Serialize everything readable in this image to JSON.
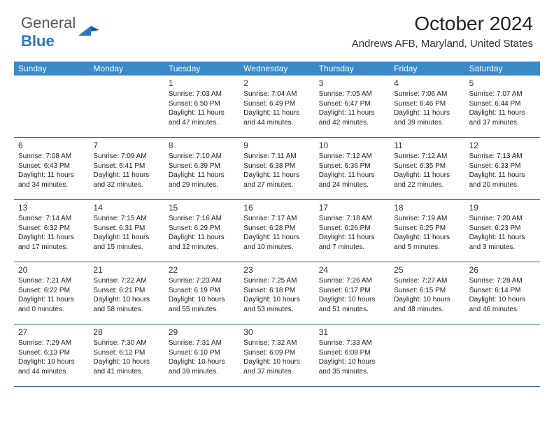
{
  "logo": {
    "text1": "General",
    "text2": "Blue"
  },
  "header": {
    "month": "October 2024",
    "location": "Andrews AFB, Maryland, United States"
  },
  "colors": {
    "header_bg": "#3a89c9",
    "header_text": "#ffffff",
    "border": "#2a6a9a",
    "text": "#222222",
    "logo_gray": "#555555",
    "logo_blue": "#2a7ab9"
  },
  "days_of_week": [
    "Sunday",
    "Monday",
    "Tuesday",
    "Wednesday",
    "Thursday",
    "Friday",
    "Saturday"
  ],
  "weeks": [
    [
      {
        "n": "",
        "sr": "",
        "ss": "",
        "dl": ""
      },
      {
        "n": "",
        "sr": "",
        "ss": "",
        "dl": ""
      },
      {
        "n": "1",
        "sr": "Sunrise: 7:03 AM",
        "ss": "Sunset: 6:50 PM",
        "dl": "Daylight: 11 hours and 47 minutes."
      },
      {
        "n": "2",
        "sr": "Sunrise: 7:04 AM",
        "ss": "Sunset: 6:49 PM",
        "dl": "Daylight: 11 hours and 44 minutes."
      },
      {
        "n": "3",
        "sr": "Sunrise: 7:05 AM",
        "ss": "Sunset: 6:47 PM",
        "dl": "Daylight: 11 hours and 42 minutes."
      },
      {
        "n": "4",
        "sr": "Sunrise: 7:06 AM",
        "ss": "Sunset: 6:46 PM",
        "dl": "Daylight: 11 hours and 39 minutes."
      },
      {
        "n": "5",
        "sr": "Sunrise: 7:07 AM",
        "ss": "Sunset: 6:44 PM",
        "dl": "Daylight: 11 hours and 37 minutes."
      }
    ],
    [
      {
        "n": "6",
        "sr": "Sunrise: 7:08 AM",
        "ss": "Sunset: 6:43 PM",
        "dl": "Daylight: 11 hours and 34 minutes."
      },
      {
        "n": "7",
        "sr": "Sunrise: 7:09 AM",
        "ss": "Sunset: 6:41 PM",
        "dl": "Daylight: 11 hours and 32 minutes."
      },
      {
        "n": "8",
        "sr": "Sunrise: 7:10 AM",
        "ss": "Sunset: 6:39 PM",
        "dl": "Daylight: 11 hours and 29 minutes."
      },
      {
        "n": "9",
        "sr": "Sunrise: 7:11 AM",
        "ss": "Sunset: 6:38 PM",
        "dl": "Daylight: 11 hours and 27 minutes."
      },
      {
        "n": "10",
        "sr": "Sunrise: 7:12 AM",
        "ss": "Sunset: 6:36 PM",
        "dl": "Daylight: 11 hours and 24 minutes."
      },
      {
        "n": "11",
        "sr": "Sunrise: 7:12 AM",
        "ss": "Sunset: 6:35 PM",
        "dl": "Daylight: 11 hours and 22 minutes."
      },
      {
        "n": "12",
        "sr": "Sunrise: 7:13 AM",
        "ss": "Sunset: 6:33 PM",
        "dl": "Daylight: 11 hours and 20 minutes."
      }
    ],
    [
      {
        "n": "13",
        "sr": "Sunrise: 7:14 AM",
        "ss": "Sunset: 6:32 PM",
        "dl": "Daylight: 11 hours and 17 minutes."
      },
      {
        "n": "14",
        "sr": "Sunrise: 7:15 AM",
        "ss": "Sunset: 6:31 PM",
        "dl": "Daylight: 11 hours and 15 minutes."
      },
      {
        "n": "15",
        "sr": "Sunrise: 7:16 AM",
        "ss": "Sunset: 6:29 PM",
        "dl": "Daylight: 11 hours and 12 minutes."
      },
      {
        "n": "16",
        "sr": "Sunrise: 7:17 AM",
        "ss": "Sunset: 6:28 PM",
        "dl": "Daylight: 11 hours and 10 minutes."
      },
      {
        "n": "17",
        "sr": "Sunrise: 7:18 AM",
        "ss": "Sunset: 6:26 PM",
        "dl": "Daylight: 11 hours and 7 minutes."
      },
      {
        "n": "18",
        "sr": "Sunrise: 7:19 AM",
        "ss": "Sunset: 6:25 PM",
        "dl": "Daylight: 11 hours and 5 minutes."
      },
      {
        "n": "19",
        "sr": "Sunrise: 7:20 AM",
        "ss": "Sunset: 6:23 PM",
        "dl": "Daylight: 11 hours and 3 minutes."
      }
    ],
    [
      {
        "n": "20",
        "sr": "Sunrise: 7:21 AM",
        "ss": "Sunset: 6:22 PM",
        "dl": "Daylight: 11 hours and 0 minutes."
      },
      {
        "n": "21",
        "sr": "Sunrise: 7:22 AM",
        "ss": "Sunset: 6:21 PM",
        "dl": "Daylight: 10 hours and 58 minutes."
      },
      {
        "n": "22",
        "sr": "Sunrise: 7:23 AM",
        "ss": "Sunset: 6:19 PM",
        "dl": "Daylight: 10 hours and 55 minutes."
      },
      {
        "n": "23",
        "sr": "Sunrise: 7:25 AM",
        "ss": "Sunset: 6:18 PM",
        "dl": "Daylight: 10 hours and 53 minutes."
      },
      {
        "n": "24",
        "sr": "Sunrise: 7:26 AM",
        "ss": "Sunset: 6:17 PM",
        "dl": "Daylight: 10 hours and 51 minutes."
      },
      {
        "n": "25",
        "sr": "Sunrise: 7:27 AM",
        "ss": "Sunset: 6:15 PM",
        "dl": "Daylight: 10 hours and 48 minutes."
      },
      {
        "n": "26",
        "sr": "Sunrise: 7:28 AM",
        "ss": "Sunset: 6:14 PM",
        "dl": "Daylight: 10 hours and 46 minutes."
      }
    ],
    [
      {
        "n": "27",
        "sr": "Sunrise: 7:29 AM",
        "ss": "Sunset: 6:13 PM",
        "dl": "Daylight: 10 hours and 44 minutes."
      },
      {
        "n": "28",
        "sr": "Sunrise: 7:30 AM",
        "ss": "Sunset: 6:12 PM",
        "dl": "Daylight: 10 hours and 41 minutes."
      },
      {
        "n": "29",
        "sr": "Sunrise: 7:31 AM",
        "ss": "Sunset: 6:10 PM",
        "dl": "Daylight: 10 hours and 39 minutes."
      },
      {
        "n": "30",
        "sr": "Sunrise: 7:32 AM",
        "ss": "Sunset: 6:09 PM",
        "dl": "Daylight: 10 hours and 37 minutes."
      },
      {
        "n": "31",
        "sr": "Sunrise: 7:33 AM",
        "ss": "Sunset: 6:08 PM",
        "dl": "Daylight: 10 hours and 35 minutes."
      },
      {
        "n": "",
        "sr": "",
        "ss": "",
        "dl": ""
      },
      {
        "n": "",
        "sr": "",
        "ss": "",
        "dl": ""
      }
    ]
  ]
}
